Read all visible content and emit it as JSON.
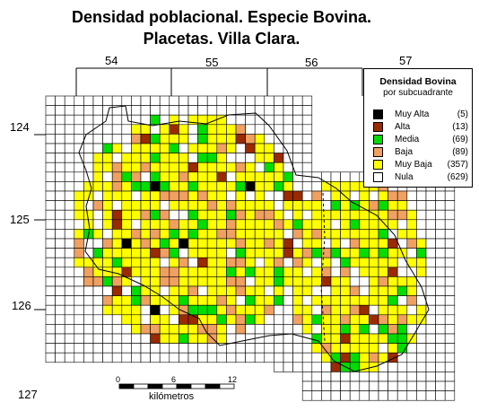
{
  "title": {
    "line1": "Densidad poblacional. Especie Bovina.",
    "line2": "Placetas. Villa Clara."
  },
  "coordinates": {
    "x": [
      "54",
      "55",
      "56",
      "57"
    ],
    "y": [
      "124",
      "125",
      "126",
      "127"
    ]
  },
  "legend": {
    "title": "Densidad Bovina",
    "subtitle": "por subcuadrante",
    "items": [
      {
        "label": "Muy Alta",
        "count": "(5)",
        "color": "#000000"
      },
      {
        "label": "Alta",
        "count": "(13)",
        "color": "#9a2a00"
      },
      {
        "label": "Media",
        "count": "(69)",
        "color": "#00dd00"
      },
      {
        "label": "Baja",
        "count": "(89)",
        "color": "#f0a060"
      },
      {
        "label": "Muy Baja",
        "count": "(357)",
        "color": "#ffff00"
      },
      {
        "label": "Nula",
        "count": "(629)",
        "color": "#ffffff"
      }
    ]
  },
  "scale": {
    "ticks": [
      "0",
      "6",
      "12"
    ],
    "unit": "kilómetros"
  }
}
